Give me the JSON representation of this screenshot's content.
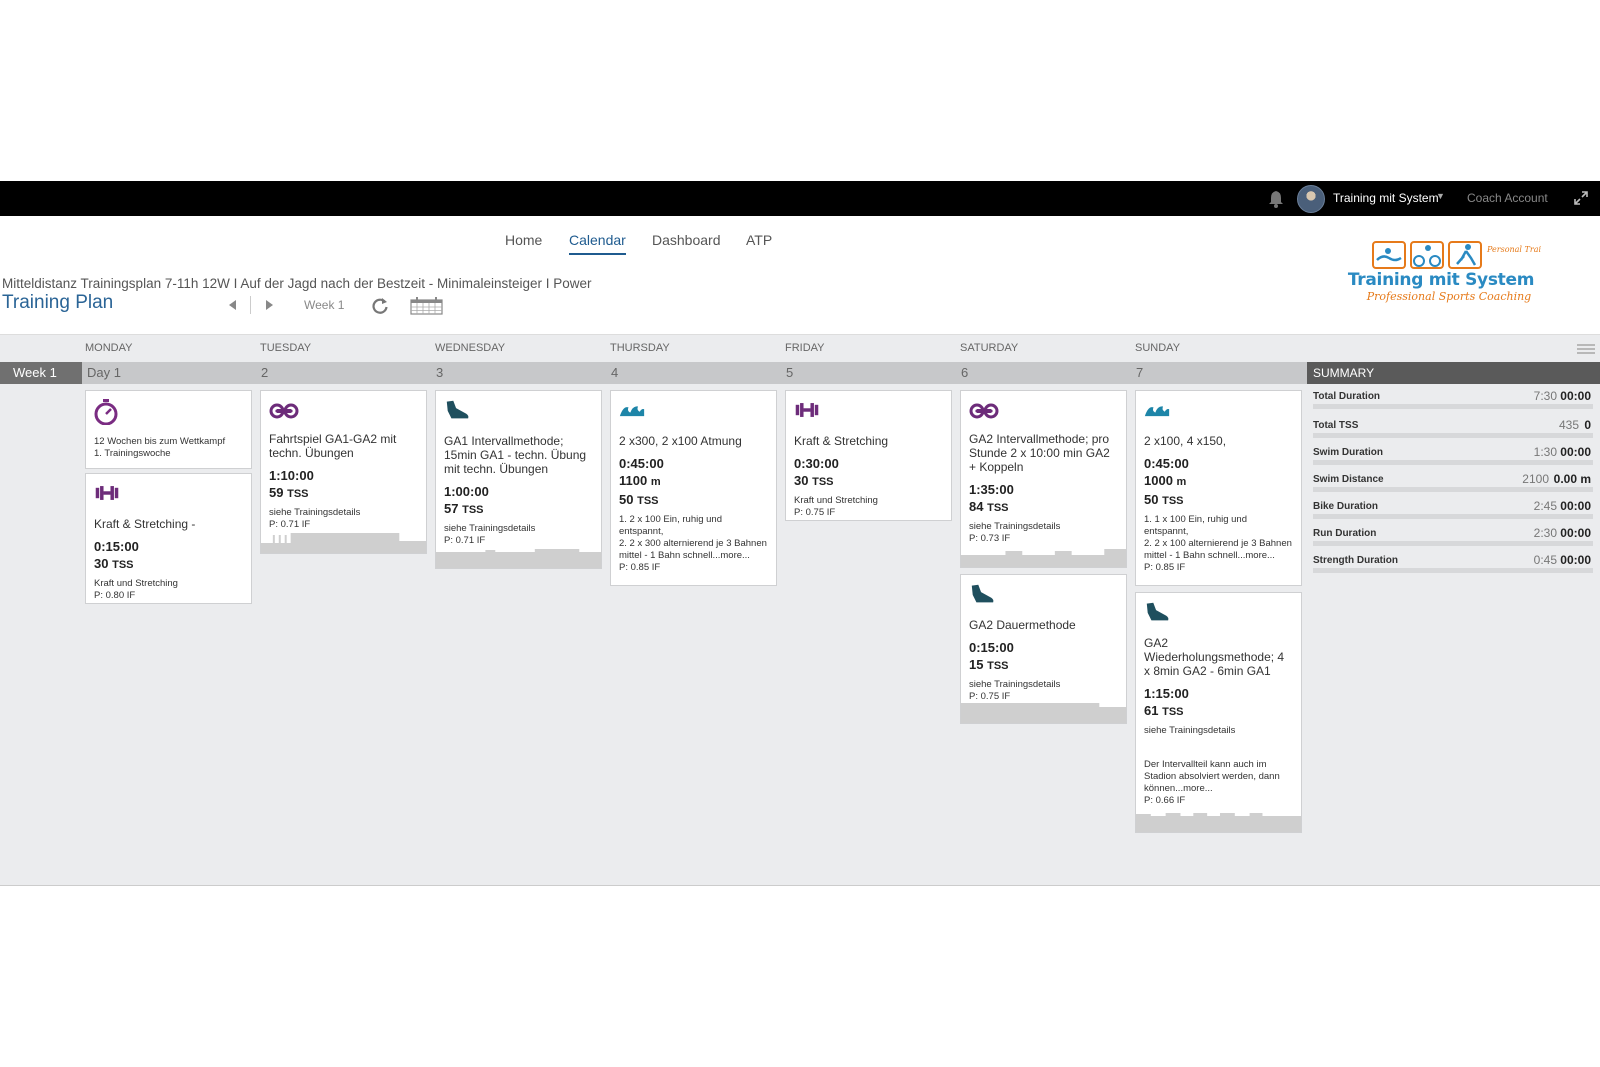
{
  "topbar": {
    "user_name": "Training mit System",
    "account": "Coach Account"
  },
  "nav": {
    "home": "Home",
    "calendar": "Calendar",
    "dashboard": "Dashboard",
    "atp": "ATP"
  },
  "plan": {
    "subtitle": "Mitteldistanz Trainingsplan 7-11h 12W I Auf der Jagd nach der Bestzeit - Minimaleinsteiger I Power",
    "title": "Training Plan",
    "week_label": "Week 1"
  },
  "logo": {
    "name": "Training mit System",
    "tagline": "Professional Sports Coaching",
    "badge": "Personal Training"
  },
  "calendar": {
    "days": [
      "MONDAY",
      "TUESDAY",
      "WEDNESDAY",
      "THURSDAY",
      "FRIDAY",
      "SATURDAY",
      "SUNDAY"
    ],
    "week": "Week 1",
    "day_numbers": [
      "Day 1",
      "2",
      "3",
      "4",
      "5",
      "6",
      "7"
    ],
    "summary_label": "SUMMARY"
  },
  "colors": {
    "bike": "#6d2c7a",
    "run": "#1f4f5e",
    "swim": "#1d85a8",
    "strength": "#6d2c7a",
    "event": "#7a2c82"
  },
  "workouts": {
    "mon_event": {
      "icon": "stopwatch-icon",
      "line1": "12 Wochen bis zum Wettkampf",
      "line2": "1. Trainingswoche"
    },
    "mon_strength": {
      "icon": "dumbbell-icon",
      "title": "Kraft & Stretching -",
      "duration": "0:15:00",
      "tss": "30",
      "tss_unit": "TSS",
      "desc": "Kraft und Stretching",
      "foot": "P: 0.80 IF"
    },
    "tue_bike": {
      "icon": "bike-icon",
      "title": "Fahrtspiel GA1-GA2 mit techn. Übungen",
      "duration": "1:10:00",
      "tss": "59",
      "tss_unit": "TSS",
      "desc": "siehe Trainingsdetails",
      "foot": "P: 0.71 IF"
    },
    "wed_run": {
      "icon": "shoe-icon",
      "title": "GA1 Intervallmethode; 15min GA1 - techn. Übung mit techn. Übungen",
      "duration": "1:00:00",
      "tss": "57",
      "tss_unit": "TSS",
      "desc": "siehe Trainingsdetails",
      "foot": "P: 0.71 IF"
    },
    "thu_swim": {
      "icon": "wave-icon",
      "title": "2 x300, 2 x100 Atmung",
      "duration": "0:45:00",
      "distance": "1100",
      "distance_unit": "m",
      "tss": "50",
      "tss_unit": "TSS",
      "desc": "1. 2 x 100 Ein, ruhig und entspannt,\n2. 2 x 300 alternierend je 3 Bahnen mittel - 1 Bahn schnell...more...",
      "foot": "P: 0.85 IF"
    },
    "fri_strength": {
      "icon": "dumbbell-icon",
      "title": "Kraft & Stretching",
      "duration": "0:30:00",
      "tss": "30",
      "tss_unit": "TSS",
      "desc": "Kraft und Stretching",
      "foot": "P: 0.75 IF"
    },
    "sat_bike": {
      "icon": "bike-icon",
      "title": "GA2 Intervallmethode; pro Stunde 2 x 10:00 min GA2 + Koppeln",
      "duration": "1:35:00",
      "tss": "84",
      "tss_unit": "TSS",
      "desc": "siehe Trainingsdetails",
      "foot": "P: 0.73 IF"
    },
    "sat_run": {
      "icon": "shoe-icon",
      "title": "GA2 Dauermethode",
      "duration": "0:15:00",
      "tss": "15",
      "tss_unit": "TSS",
      "desc": "siehe Trainingsdetails",
      "foot": "P: 0.75 IF"
    },
    "sun_swim": {
      "icon": "wave-icon",
      "title": "2 x100, 4 x150,",
      "duration": "0:45:00",
      "distance": "1000",
      "distance_unit": "m",
      "tss": "50",
      "tss_unit": "TSS",
      "desc": "1. 1 x 100 Ein, ruhig und entspannt,\n2. 2 x 100 alternierend je 3 Bahnen mittel - 1 Bahn schnell...more...",
      "foot": "P: 0.85 IF"
    },
    "sun_run": {
      "icon": "shoe-icon",
      "title": "GA2 Wiederholungsmethode; 4 x 8min GA2 - 6min GA1",
      "duration": "1:15:00",
      "tss": "61",
      "tss_unit": "TSS",
      "desc": "siehe Trainingsdetails",
      "desc2": "Der Intervallteil kann auch im Stadion absolviert werden, dann können...more...",
      "foot": "P: 0.66 IF"
    }
  },
  "summary": {
    "total_duration": {
      "label": "Total Duration",
      "planned": "7:30",
      "done": "00:00"
    },
    "total_tss": {
      "label": "Total TSS",
      "planned": "435",
      "done": "0"
    },
    "swim_duration": {
      "label": "Swim Duration",
      "planned": "1:30",
      "done": "00:00"
    },
    "swim_distance": {
      "label": "Swim Distance",
      "planned": "2100",
      "done": "0.00 m"
    },
    "bike_duration": {
      "label": "Bike Duration",
      "planned": "2:45",
      "done": "00:00"
    },
    "run_duration": {
      "label": "Run Duration",
      "planned": "2:30",
      "done": "00:00"
    },
    "strength_duration": {
      "label": "Strength Duration",
      "planned": "0:45",
      "done": "00:00"
    }
  }
}
